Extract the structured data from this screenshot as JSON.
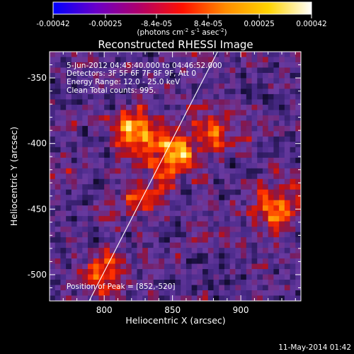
{
  "chart_data": {
    "type": "heatmap",
    "title": "Reconstructed RHESSI Image",
    "xlabel": "Heliocentric X (arcsec)",
    "ylabel": "Heliocentric Y (arcsec)",
    "xlim": [
      760,
      944
    ],
    "ylim": [
      -520,
      -330
    ],
    "xticks": [
      "800",
      "850",
      "900"
    ],
    "yticks": [
      "-350",
      "-400",
      "-450",
      "-500"
    ],
    "xtick_values": [
      800,
      850,
      900
    ],
    "ytick_values": [
      -350,
      -400,
      -450,
      -500
    ],
    "colorbar": {
      "range": [
        -0.00042,
        0.00042
      ],
      "tick_values": [
        -0.00042,
        -0.00025,
        -8.4e-05,
        8.4e-05,
        0.00025,
        0.00042
      ],
      "tick_labels": [
        "-0.00042",
        "-0.00025",
        "-8.4e-05",
        "8.4e-05",
        "0.00025",
        "0.00042"
      ],
      "units_label": "(photons cm",
      "units_exp1": "-2",
      "units_mid": " s",
      "units_exp2": "-1",
      "units_end": " asec",
      "units_exp3": "-2",
      "units_close": ")",
      "colors": [
        "#0000ff",
        "#6a00c8",
        "#b0006a",
        "#ff1000",
        "#ff8c00",
        "#ffd400",
        "#ffffff"
      ]
    },
    "annotations": [
      "5-Jun-2012 04:45:40.000 to 04:46:52.000",
      "Detectors: 3F 5F 6F 7F 8F 9F, Att 0",
      "Energy Range: 12.0 - 25.0 keV",
      "Clean     Total counts: 995."
    ],
    "peak_label": "Position of Peak = [852,-520]",
    "peak_position": [
      852,
      -520
    ],
    "limb_line": {
      "x": [
        789,
        883
      ],
      "y": [
        -520,
        -330
      ]
    },
    "image_extent": "x 760 to 944, y -520 to -330 arcsec",
    "emission_sources": [
      {
        "x": 850,
        "y": -410,
        "level": 1.0
      },
      {
        "x": 822,
        "y": -392,
        "level": 0.75
      },
      {
        "x": 925,
        "y": -450,
        "level": 0.8
      },
      {
        "x": 800,
        "y": -500,
        "level": 0.65
      },
      {
        "x": 880,
        "y": -390,
        "level": 0.55
      },
      {
        "x": 830,
        "y": -440,
        "level": 0.5
      }
    ]
  },
  "footer": {
    "date": "11-May-2014 01:42"
  }
}
